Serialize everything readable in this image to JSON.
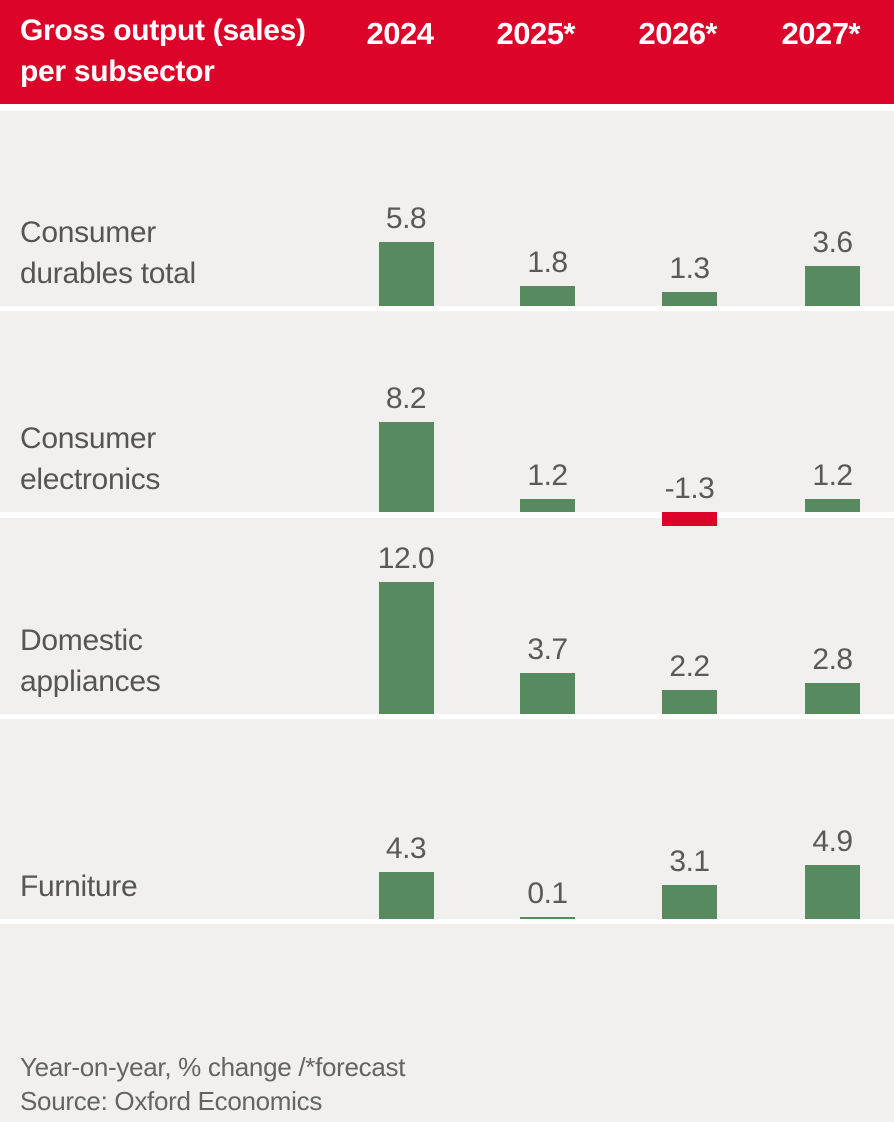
{
  "header": {
    "title_line1": "Gross output (sales)",
    "title_line2": "per subsector",
    "columns": [
      "2024",
      "2025*",
      "2026*",
      "2027*"
    ]
  },
  "chart_data": {
    "type": "bar",
    "title": "Gross output (sales) per subsector",
    "unit": "Year-on-year % change",
    "categories": [
      "2024",
      "2025*",
      "2026*",
      "2027*"
    ],
    "series": [
      {
        "name": "Consumer durables total",
        "label_lines": [
          "Consumer",
          "durables total"
        ],
        "values": [
          5.8,
          1.8,
          1.3,
          3.6
        ],
        "display": [
          "5.8",
          "1.8",
          "1.3",
          "3.6"
        ]
      },
      {
        "name": "Consumer electronics",
        "label_lines": [
          "Consumer",
          "electronics"
        ],
        "values": [
          8.2,
          1.2,
          -1.3,
          1.2
        ],
        "display": [
          "8.2",
          "1.2",
          "-1.3",
          "1.2"
        ]
      },
      {
        "name": "Domestic appliances",
        "label_lines": [
          "Domestic",
          "appliances"
        ],
        "values": [
          12.0,
          3.7,
          2.2,
          2.8
        ],
        "display": [
          "12.0",
          "3.7",
          "2.2",
          "2.8"
        ]
      },
      {
        "name": "Furniture",
        "label_lines": [
          "Furniture"
        ],
        "values": [
          4.3,
          0.1,
          3.1,
          4.9
        ],
        "display": [
          "4.3",
          "0.1",
          "3.1",
          "4.9"
        ]
      }
    ],
    "colors": {
      "positive": "#588a60",
      "negative": "#dc0428",
      "header_band": "#dc0428",
      "row_background": "#f1f0ee",
      "text": "#595959"
    },
    "legend_position": "none",
    "grid": false
  },
  "footer": {
    "note": "Year-on-year, % change /*forecast",
    "source": "Source: Oxford Economics"
  }
}
